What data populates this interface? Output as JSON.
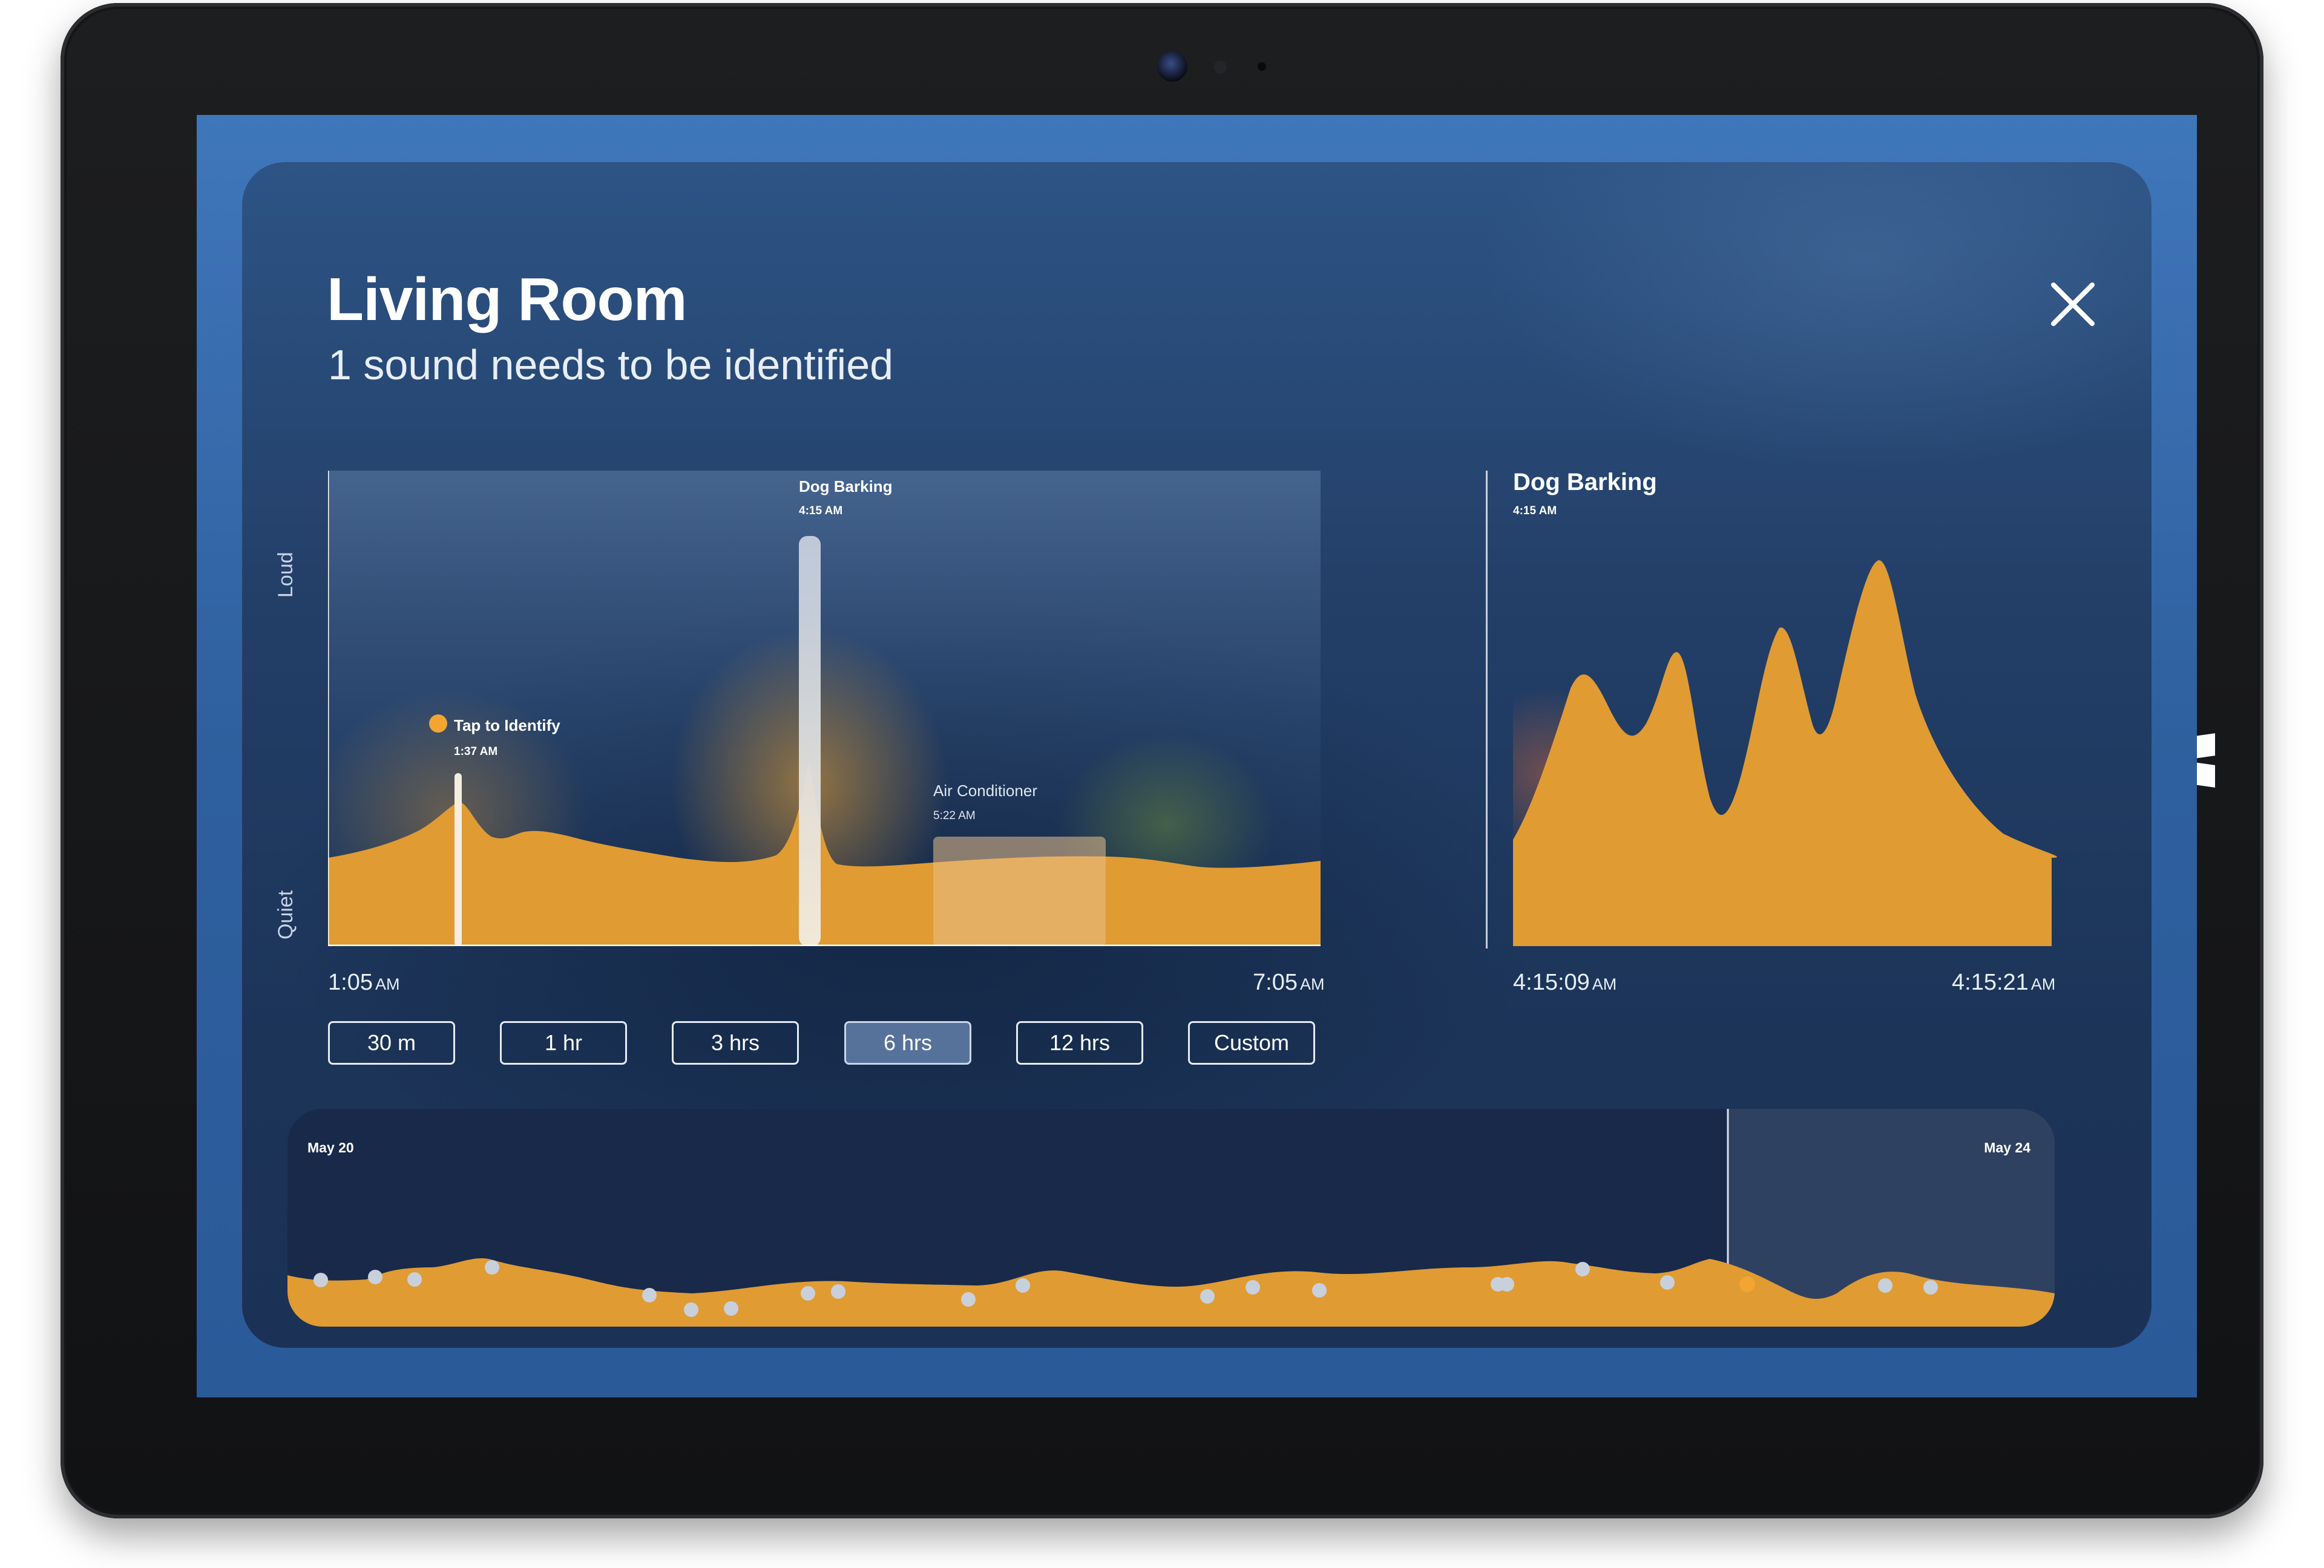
{
  "header": {
    "title": "Living Room",
    "subtitle": "1 sound needs to be identified"
  },
  "main_chart": {
    "y_axis": {
      "top_label": "Loud",
      "bottom_label": "Quiet"
    },
    "start_time": {
      "value": "1:05",
      "period": "AM"
    },
    "end_time": {
      "value": "7:05",
      "period": "AM"
    },
    "events": [
      {
        "label": "Tap to Identify",
        "time": "1:37 AM",
        "status_color": "#f2a531"
      },
      {
        "label": "Dog Barking",
        "time": "4:15 AM"
      },
      {
        "label": "Air Conditioner",
        "time": "5:22 AM"
      }
    ]
  },
  "detail_chart": {
    "title": "Dog Barking",
    "time": "4:15 AM",
    "start_time": {
      "value": "4:15:09",
      "period": "AM"
    },
    "end_time": {
      "value": "4:15:21",
      "period": "AM"
    }
  },
  "time_ranges": {
    "selected": "6 hrs",
    "options": [
      "30 m",
      "1 hr",
      "3 hrs",
      "6 hrs",
      "12 hrs",
      "Custom"
    ]
  },
  "timeline": {
    "start_label": "May 20",
    "end_label": "May 24"
  },
  "colors": {
    "accent": "#f2a531",
    "fill": "#e09b33",
    "background": "#2b5a99"
  },
  "icons": {
    "close": "close-icon",
    "windows": "windows-logo-icon"
  }
}
